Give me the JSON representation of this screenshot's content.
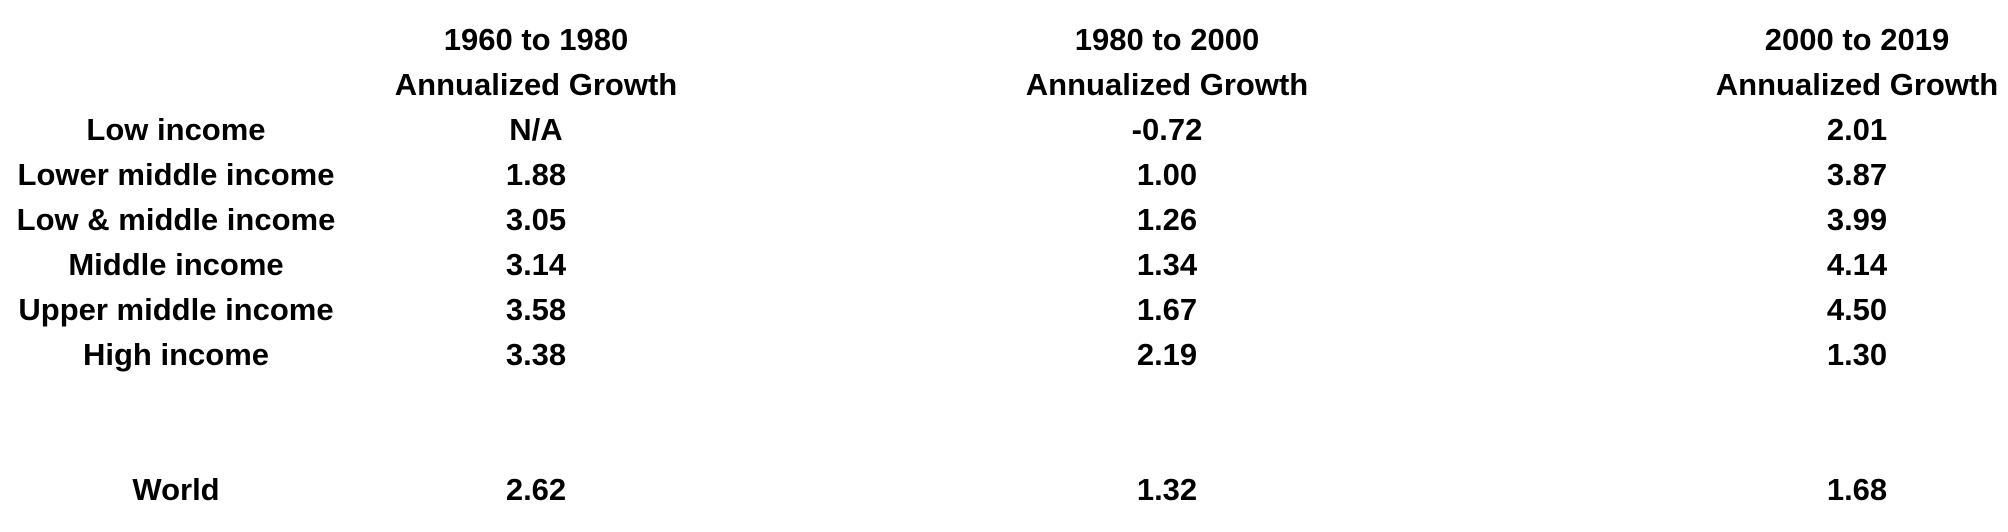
{
  "chart_data": {
    "type": "table",
    "columns": [
      {
        "period": "1960 to 1980",
        "subtitle": "Annualized Growth"
      },
      {
        "period": "1980 to 2000",
        "subtitle": "Annualized Growth"
      },
      {
        "period": "2000 to 2019",
        "subtitle": "Annualized Growth"
      }
    ],
    "rows": [
      {
        "label": "Low income",
        "values": [
          "N/A",
          "-0.72",
          "2.01"
        ]
      },
      {
        "label": "Lower middle income",
        "values": [
          "1.88",
          "1.00",
          "3.87"
        ]
      },
      {
        "label": "Low & middle income",
        "values": [
          "3.05",
          "1.26",
          "3.99"
        ]
      },
      {
        "label": "Middle income",
        "values": [
          "3.14",
          "1.34",
          "4.14"
        ]
      },
      {
        "label": "Upper middle income",
        "values": [
          "3.58",
          "1.67",
          "4.50"
        ]
      },
      {
        "label": "High income",
        "values": [
          "3.38",
          "2.19",
          "1.30"
        ]
      },
      {
        "label": "World",
        "values": [
          "2.62",
          "1.32",
          "1.68"
        ]
      }
    ],
    "colors": {
      "text": "#000000",
      "background": "#ffffff"
    }
  }
}
